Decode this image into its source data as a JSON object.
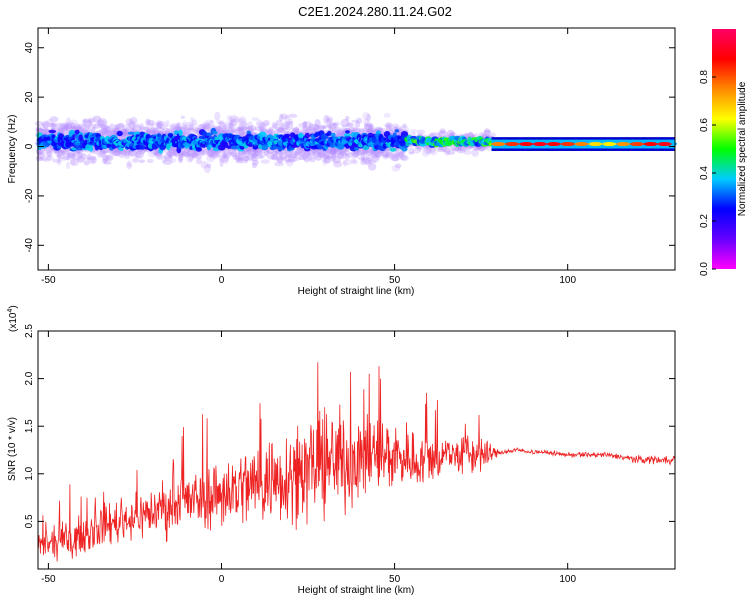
{
  "figure_title": "C2E1.2024.280.11.24.G02",
  "chart_data": [
    {
      "type": "heatmap",
      "title": "C2E1.2024.280.11.24.G02",
      "xlabel": "Height of straight line (km)",
      "ylabel": "Frequency (Hz)",
      "xlim": [
        -53,
        131
      ],
      "ylim": [
        -50,
        48
      ],
      "x_ticks": [
        -50,
        0,
        50,
        100
      ],
      "y_ticks": [
        -40,
        -20,
        0,
        20,
        40
      ],
      "grid": false,
      "colorbar": {
        "label": "Normalized spectral amplitude",
        "range": [
          0,
          1
        ],
        "ticks": [
          0.0,
          0.2,
          0.4,
          0.6,
          0.8
        ],
        "colormap": [
          "#ff00ff",
          "#6600ff",
          "#0000ff",
          "#00ccff",
          "#00ff00",
          "#ffff00",
          "#ff8800",
          "#ff0000",
          "#ff0066"
        ]
      },
      "segments": [
        {
          "x_range": [
            -53,
            53
          ],
          "center_hz": 2,
          "spread_hz": 10,
          "peak_amplitude": 0.45,
          "description_values": "scattered"
        },
        {
          "x_range": [
            53,
            78
          ],
          "center_hz": 2,
          "spread_hz": 5,
          "peak_amplitude": 0.7
        },
        {
          "x_range": [
            78,
            131
          ],
          "center_hz": 1,
          "spread_hz": 2,
          "peak_amplitude": 0.85
        }
      ]
    },
    {
      "type": "line",
      "xlabel": "Height of straight line (km)",
      "ylabel": "SNR (10 * v/v)",
      "y_multiplier": "(x10",
      "y_multiplier_exp": "4",
      "xlim": [
        -53,
        131
      ],
      "ylim": [
        0,
        2.5
      ],
      "x_ticks": [
        -50,
        0,
        50,
        100
      ],
      "y_ticks": [
        0.5,
        1.0,
        1.5,
        2.0,
        2.5
      ],
      "grid": false,
      "series": [
        {
          "color": "#ee2222",
          "x": [
            -53,
            -50,
            -45,
            -40,
            -35,
            -30,
            -25,
            -20,
            -15,
            -10,
            -5,
            0,
            5,
            10,
            15,
            20,
            25,
            30,
            35,
            40,
            45,
            50,
            55,
            60,
            65,
            70,
            75,
            80,
            85,
            90,
            95,
            100,
            105,
            110,
            115,
            120,
            125,
            131
          ],
          "values": [
            0.25,
            0.25,
            0.3,
            0.35,
            0.45,
            0.5,
            0.55,
            0.6,
            0.65,
            0.7,
            0.75,
            0.8,
            0.85,
            0.9,
            0.95,
            1.0,
            1.05,
            1.1,
            1.15,
            1.15,
            1.2,
            1.2,
            1.15,
            1.15,
            1.2,
            1.2,
            1.2,
            1.22,
            1.25,
            1.23,
            1.22,
            1.2,
            1.2,
            1.2,
            1.18,
            1.15,
            1.15,
            1.15
          ],
          "noise_amplitude": [
            0.2,
            0.2,
            0.25,
            0.25,
            0.3,
            0.3,
            0.3,
            0.35,
            0.4,
            0.4,
            0.45,
            0.5,
            0.55,
            0.6,
            0.65,
            0.65,
            0.7,
            0.7,
            0.7,
            0.6,
            0.55,
            0.5,
            0.4,
            0.35,
            0.3,
            0.3,
            0.3,
            0.04,
            0.03,
            0.03,
            0.03,
            0.03,
            0.04,
            0.04,
            0.04,
            0.05,
            0.06,
            0.06
          ]
        }
      ]
    }
  ]
}
